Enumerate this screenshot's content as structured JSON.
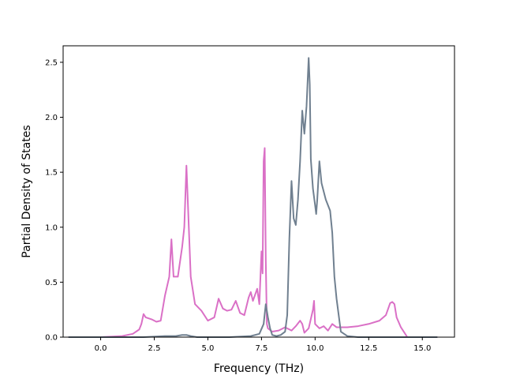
{
  "chart_data": {
    "type": "line",
    "title": "",
    "xlabel": "Frequency (THz)",
    "ylabel": "Partial Density of States",
    "xlim": [
      -1.75,
      16.5
    ],
    "ylim": [
      0,
      2.65
    ],
    "xticks": [
      0.0,
      2.5,
      5.0,
      7.5,
      10.0,
      12.5,
      15.0
    ],
    "xtick_labels": [
      "0.0",
      "2.5",
      "5.0",
      "7.5",
      "10.0",
      "12.5",
      "15.0"
    ],
    "yticks": [
      0.0,
      0.5,
      1.0,
      1.5,
      2.0,
      2.5
    ],
    "ytick_labels": [
      "0.0",
      "0.5",
      "1.0",
      "1.5",
      "2.0",
      "2.5"
    ],
    "grid": false,
    "legend": "none",
    "series": [
      {
        "color": "#da70c6",
        "x": [
          -1.5,
          0.0,
          1.0,
          1.5,
          1.8,
          1.9,
          2.0,
          2.1,
          2.4,
          2.6,
          2.8,
          3.0,
          3.2,
          3.3,
          3.4,
          3.6,
          3.8,
          3.9,
          4.0,
          4.2,
          4.4,
          4.7,
          5.0,
          5.3,
          5.5,
          5.7,
          5.9,
          6.1,
          6.3,
          6.5,
          6.7,
          6.9,
          7.0,
          7.1,
          7.3,
          7.4,
          7.5,
          7.55,
          7.6,
          7.65,
          7.7,
          7.75,
          7.8,
          8.0,
          8.3,
          8.6,
          8.9,
          9.1,
          9.3,
          9.4,
          9.5,
          9.7,
          9.9,
          9.95,
          10.0,
          10.2,
          10.4,
          10.6,
          10.8,
          11.0,
          11.5,
          12.0,
          12.5,
          13.0,
          13.3,
          13.5,
          13.6,
          13.7,
          13.8,
          14.0,
          14.3,
          14.5,
          15.0,
          15.7
        ],
        "y": [
          0.0,
          0.0,
          0.01,
          0.03,
          0.07,
          0.12,
          0.21,
          0.18,
          0.16,
          0.14,
          0.15,
          0.38,
          0.55,
          0.89,
          0.55,
          0.55,
          0.82,
          1.0,
          1.56,
          0.55,
          0.3,
          0.24,
          0.15,
          0.18,
          0.35,
          0.26,
          0.24,
          0.25,
          0.33,
          0.22,
          0.2,
          0.36,
          0.41,
          0.33,
          0.44,
          0.3,
          0.78,
          0.58,
          1.6,
          1.72,
          0.7,
          0.12,
          0.08,
          0.05,
          0.06,
          0.09,
          0.06,
          0.1,
          0.15,
          0.12,
          0.04,
          0.08,
          0.25,
          0.33,
          0.12,
          0.08,
          0.1,
          0.06,
          0.12,
          0.09,
          0.09,
          0.1,
          0.12,
          0.15,
          0.2,
          0.31,
          0.32,
          0.3,
          0.18,
          0.09,
          0.0,
          0.0,
          0.0,
          0.0
        ]
      },
      {
        "color": "#708090",
        "x": [
          -1.5,
          0.0,
          1.0,
          2.0,
          3.0,
          3.5,
          3.8,
          4.0,
          4.2,
          4.5,
          5.0,
          6.0,
          7.0,
          7.4,
          7.6,
          7.7,
          7.8,
          7.9,
          8.0,
          8.2,
          8.4,
          8.6,
          8.7,
          8.8,
          8.9,
          9.0,
          9.1,
          9.2,
          9.3,
          9.4,
          9.5,
          9.6,
          9.7,
          9.75,
          9.8,
          9.9,
          10.0,
          10.05,
          10.1,
          10.2,
          10.3,
          10.5,
          10.7,
          10.8,
          10.9,
          11.0,
          11.1,
          11.2,
          11.5,
          12.0,
          15.7
        ],
        "y": [
          0.0,
          0.0,
          0.0,
          0.0,
          0.01,
          0.01,
          0.02,
          0.02,
          0.01,
          0.0,
          0.0,
          0.0,
          0.01,
          0.03,
          0.12,
          0.3,
          0.18,
          0.08,
          0.02,
          0.01,
          0.02,
          0.05,
          0.2,
          0.9,
          1.42,
          1.08,
          1.02,
          1.25,
          1.6,
          2.06,
          1.85,
          2.1,
          2.54,
          2.3,
          1.62,
          1.35,
          1.2,
          1.12,
          1.25,
          1.6,
          1.4,
          1.25,
          1.15,
          0.95,
          0.55,
          0.35,
          0.2,
          0.05,
          0.01,
          0.0,
          0.0
        ]
      }
    ]
  }
}
